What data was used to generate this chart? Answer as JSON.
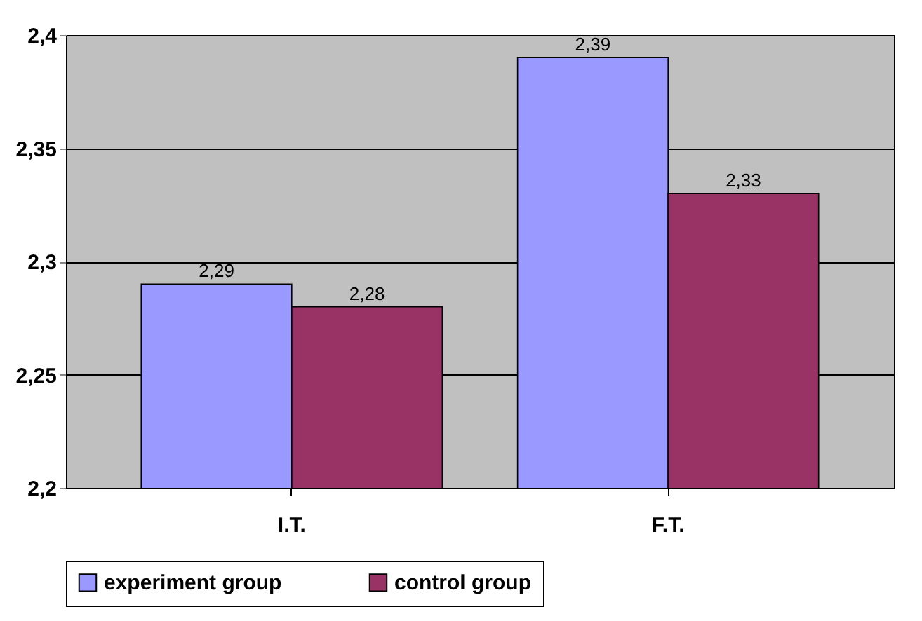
{
  "chart_data": {
    "type": "bar",
    "categories": [
      "I.T.",
      "F.T."
    ],
    "series": [
      {
        "name": "experiment group",
        "color": "#9999ff",
        "values": [
          2.29,
          2.39
        ],
        "value_labels": [
          "2,29",
          "2,39"
        ]
      },
      {
        "name": "control group",
        "color": "#993366",
        "values": [
          2.28,
          2.33
        ],
        "value_labels": [
          "2,28",
          "2,33"
        ]
      }
    ],
    "ylim": [
      2.2,
      2.4
    ],
    "yticks": [
      {
        "value": 2.2,
        "label": "2,2"
      },
      {
        "value": 2.25,
        "label": "2,25"
      },
      {
        "value": 2.3,
        "label": "2,3"
      },
      {
        "value": 2.35,
        "label": "2,35"
      },
      {
        "value": 2.4,
        "label": "2,4"
      }
    ],
    "grid": "y",
    "legend": "bottom"
  }
}
